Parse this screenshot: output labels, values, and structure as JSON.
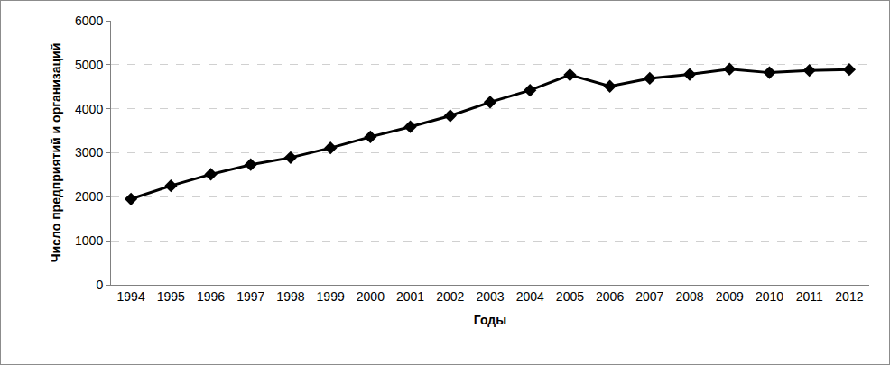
{
  "chart_data": {
    "type": "line",
    "x_label": "Годы",
    "y_label": "Число предприятий и организаций",
    "categories": [
      "1994",
      "1995",
      "1996",
      "1997",
      "1998",
      "1999",
      "2000",
      "2001",
      "2002",
      "2003",
      "2004",
      "2005",
      "2006",
      "2007",
      "2008",
      "2009",
      "2010",
      "2011",
      "2012"
    ],
    "values": [
      1950,
      2250,
      2510,
      2730,
      2890,
      3110,
      3360,
      3590,
      3840,
      4150,
      4420,
      4770,
      4510,
      4690,
      4780,
      4900,
      4820,
      4870,
      4890
    ],
    "color": "#000000",
    "marker": "diamond",
    "line_style": "solid",
    "ylim": [
      0,
      6000
    ],
    "yticks": [
      0,
      1000,
      2000,
      3000,
      4000,
      5000,
      6000
    ],
    "grid": true
  }
}
